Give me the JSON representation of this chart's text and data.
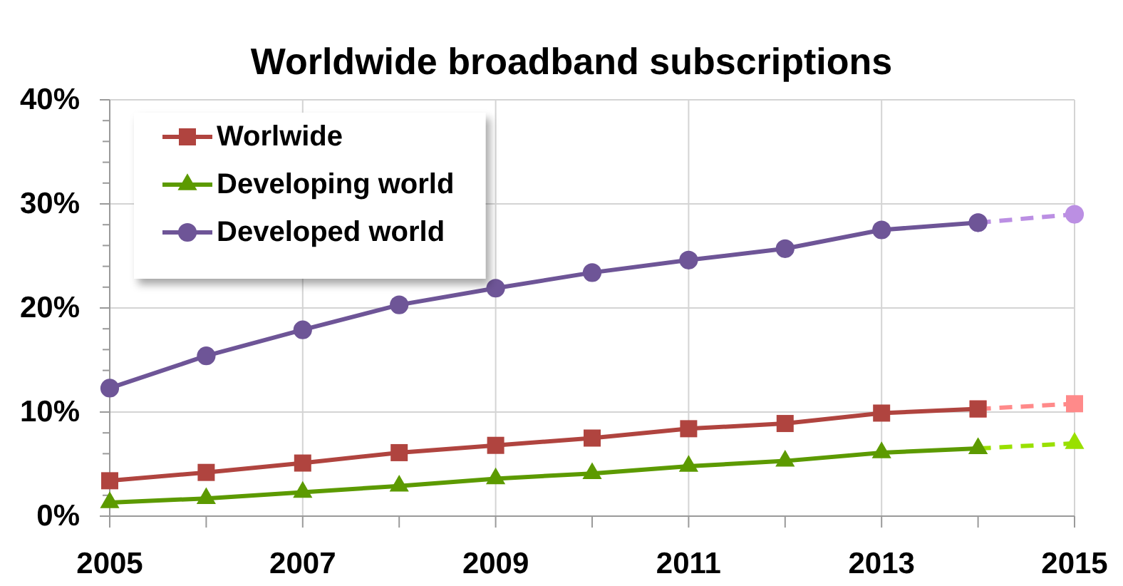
{
  "chart_data": {
    "type": "line",
    "title": "Worldwide broadband subscriptions",
    "xlim": [
      2005,
      2015
    ],
    "xticks": [
      2005,
      {
        "value": 2006,
        "label": null
      },
      2007,
      {
        "value": 2008,
        "label": null
      },
      2009,
      {
        "value": 2010,
        "label": null
      },
      2011,
      {
        "value": 2012,
        "label": null
      },
      2013,
      {
        "value": 2014,
        "label": null
      },
      2015
    ],
    "ylim": [
      0,
      40
    ],
    "yticks": [
      {
        "value": 0,
        "label": "0%"
      },
      {
        "value": 2,
        "label": null
      },
      {
        "value": 4,
        "label": null
      },
      {
        "value": 6,
        "label": null
      },
      {
        "value": 8,
        "label": null
      },
      {
        "value": 10,
        "label": "10%"
      },
      {
        "value": 12,
        "label": null
      },
      {
        "value": 14,
        "label": null
      },
      {
        "value": 16,
        "label": null
      },
      {
        "value": 18,
        "label": null
      },
      {
        "value": 20,
        "label": "20%"
      },
      {
        "value": 22,
        "label": null
      },
      {
        "value": 24,
        "label": null
      },
      {
        "value": 26,
        "label": null
      },
      {
        "value": 28,
        "label": null
      },
      {
        "value": 30,
        "label": "30%"
      },
      {
        "value": 32,
        "label": null
      },
      {
        "value": 34,
        "label": null
      },
      {
        "value": 36,
        "label": null
      },
      {
        "value": 38,
        "label": null
      },
      {
        "value": 40,
        "label": "40%"
      }
    ],
    "grid": true,
    "legend": "top left",
    "series": [
      {
        "color": "#ff8a8a",
        "x": [
          2014,
          2015
        ],
        "values": [
          10.3,
          10.8
        ],
        "marker": "square",
        "line_style": "dashed"
      },
      {
        "color": "#99e000",
        "x": [
          2014,
          2015
        ],
        "values": [
          6.5,
          7.0
        ],
        "marker": "triangle",
        "line_style": "dashed"
      },
      {
        "color": "#bb8fe3",
        "x": [
          2014,
          2015
        ],
        "values": [
          28.2,
          29.0
        ],
        "marker": "circle",
        "line_style": "dashed"
      },
      {
        "name": "Worlwide",
        "color": "#b0443f",
        "x": [
          2005,
          2006,
          2007,
          2008,
          2009,
          2010,
          2011,
          2012,
          2013,
          2014
        ],
        "values": [
          3.4,
          4.2,
          5.1,
          6.1,
          6.8,
          7.5,
          8.4,
          8.9,
          9.9,
          10.3
        ],
        "marker": "square"
      },
      {
        "name": "Developing world",
        "color": "#5c9a00",
        "x": [
          2005,
          2006,
          2007,
          2008,
          2009,
          2010,
          2011,
          2012,
          2013,
          2014
        ],
        "values": [
          1.3,
          1.7,
          2.3,
          2.9,
          3.6,
          4.1,
          4.8,
          5.3,
          6.1,
          6.5
        ],
        "marker": "triangle"
      },
      {
        "name": "Developed world",
        "color": "#6e5597",
        "x": [
          2005,
          2006,
          2007,
          2008,
          2009,
          2010,
          2011,
          2012,
          2013,
          2014
        ],
        "values": [
          12.3,
          15.4,
          17.9,
          20.3,
          21.9,
          23.4,
          24.6,
          25.7,
          27.5,
          28.2
        ],
        "marker": "circle"
      }
    ]
  }
}
